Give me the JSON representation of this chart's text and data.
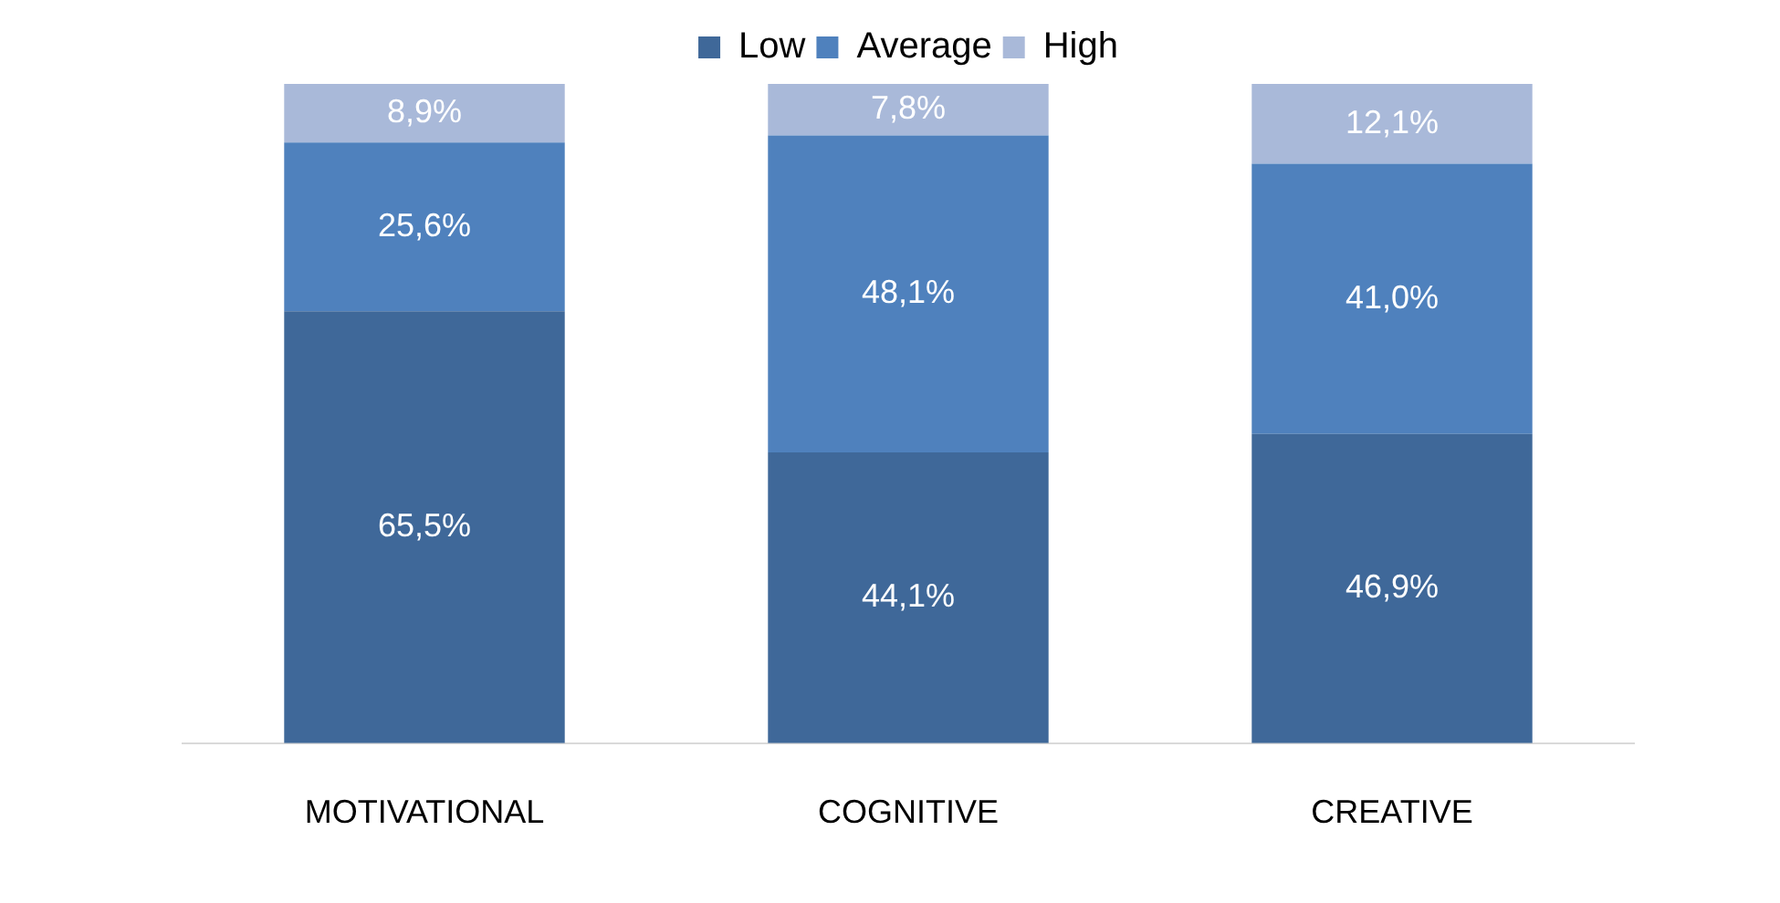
{
  "chart_data": {
    "type": "bar",
    "stacked": true,
    "categories": [
      "MOTIVATIONAL",
      "COGNITIVE",
      "CREATIVE"
    ],
    "series": [
      {
        "name": "Low",
        "color": "#3f6899",
        "values": [
          65.5,
          44.1,
          46.9
        ],
        "value_labels": [
          "65,5%",
          "44,1%",
          "46,9%"
        ]
      },
      {
        "name": "Average",
        "color": "#4f81bd",
        "values": [
          25.6,
          48.1,
          41.0
        ],
        "value_labels": [
          "25,6%",
          "48,1%",
          "41,0%"
        ]
      },
      {
        "name": "High",
        "color": "#a9b9d9",
        "values": [
          8.9,
          7.8,
          12.1
        ],
        "value_labels": [
          "8,9%",
          "7,8%",
          "12,1%"
        ]
      }
    ],
    "legend": "top",
    "grid": false,
    "tick_labels": "x"
  }
}
